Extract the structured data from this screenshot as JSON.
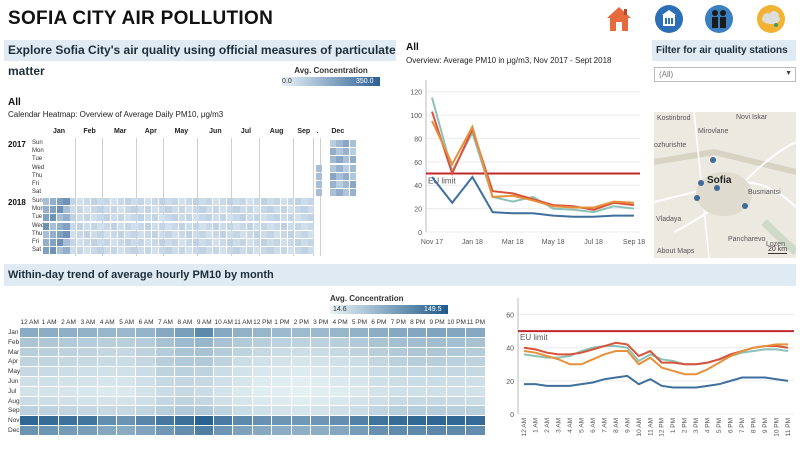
{
  "header": {
    "title": "SOFIA CITY AIR POLLUTION",
    "icons": [
      "home-icon",
      "building-icon",
      "people-icon",
      "weather-icon"
    ]
  },
  "explore_banner": "Explore Sofia City's air quality using official measures of particulate matter",
  "calendar_legend": {
    "title": "Avg. Concentration",
    "min": "0.0",
    "max": "350.0"
  },
  "calendar": {
    "all_label": "All",
    "subtitle": "Calendar Heatmap: Overview of Average Daily PM10, μg/m3",
    "months": [
      "Jan",
      "Feb",
      "Mar",
      "Apr",
      "May",
      "Jun",
      "Jul",
      "Aug",
      "Sep",
      ".",
      "Dec"
    ],
    "years": [
      "2017",
      "2018"
    ],
    "weekdays": [
      "Sun",
      "Mon",
      "Tue",
      "Wed",
      "Thu",
      "Fri",
      "Sat"
    ]
  },
  "line_top": {
    "all_label": "All",
    "subtitle": "Overview: Average PM10 in μg/m3, Nov 2017 - Sept 2018",
    "eu_limit_label": "EU limit"
  },
  "filter": {
    "title": "Filter for air quality stations",
    "selected": "(All)"
  },
  "map": {
    "labels": [
      "Kostinbrod",
      "Novi Iskar",
      "Mirovlane",
      "ozhurishte",
      "Sofia",
      "Busmantsi",
      "Vladaya",
      "Pancharevo",
      "Lozen"
    ],
    "attribution": "About Maps",
    "scale": "20 km"
  },
  "hourly_banner": "Within-day trend of average hourly PM10 by month",
  "hourly_legend": {
    "title": "Avg. Concentration",
    "min": "14.6",
    "max": "149.5"
  },
  "hourly_heatmap": {
    "hours": [
      "12 AM",
      "1 AM",
      "2 AM",
      "3 AM",
      "4 AM",
      "5 AM",
      "6 AM",
      "7 AM",
      "8 AM",
      "9 AM",
      "10 AM",
      "11 AM",
      "12 PM",
      "1 PM",
      "2 PM",
      "3 PM",
      "4 PM",
      "5 PM",
      "6 PM",
      "7 PM",
      "8 PM",
      "9 PM",
      "10 PM",
      "11 PM"
    ],
    "months": [
      "Jan",
      "Feb",
      "Mar",
      "Apr",
      "May",
      "Jun",
      "Jul",
      "Aug",
      "Sep",
      "Nov",
      "Dec"
    ]
  },
  "line_bottom": {
    "eu_limit_label": "EU limit"
  },
  "colors": {
    "banner_bg": "#dfeaf3",
    "eu_limit": "#c0282d",
    "series_blue": "#3f6f9c",
    "series_orange": "#e8903a",
    "series_red": "#d9533b",
    "series_green": "#8bc2b8",
    "heat_low": "#eef5f8",
    "heat_high": "#1f5a8a"
  },
  "chart_data": [
    {
      "type": "line",
      "x": [
        "Nov 17",
        "Dec 17",
        "Jan 18",
        "Feb 18",
        "Mar 18",
        "Apr 18",
        "May 18",
        "Jun 18",
        "Jul 18",
        "Aug 18",
        "Sep 18"
      ],
      "x_tick_labels": [
        "Nov 17",
        "Jan 18",
        "Mar 18",
        "May 18",
        "Jul 18",
        "Sep 18"
      ],
      "y_ticks": [
        0,
        20,
        40,
        60,
        80,
        100,
        120
      ],
      "ylim": [
        0,
        130
      ],
      "reference_line": {
        "label": "EU limit",
        "value": 50
      },
      "series": [
        {
          "color": "#8bc2b8",
          "values": [
            115,
            52,
            85,
            30,
            26,
            30,
            20,
            19,
            17,
            22,
            20
          ]
        },
        {
          "color": "#d9533b",
          "values": [
            103,
            50,
            88,
            35,
            33,
            28,
            23,
            22,
            19,
            25,
            23
          ]
        },
        {
          "color": "#e8903a",
          "values": [
            95,
            58,
            90,
            30,
            31,
            27,
            22,
            21,
            21,
            26,
            25
          ]
        },
        {
          "color": "#3f6f9c",
          "values": [
            47,
            25,
            47,
            17,
            16,
            16,
            14,
            13,
            13,
            14,
            14
          ]
        }
      ]
    },
    {
      "type": "heatmap",
      "rows": [
        "Jan",
        "Feb",
        "Mar",
        "Apr",
        "May",
        "Jun",
        "Jul",
        "Aug",
        "Sep",
        "Nov",
        "Dec"
      ],
      "columns": [
        "12 AM",
        "1 AM",
        "2 AM",
        "3 AM",
        "4 AM",
        "5 AM",
        "6 AM",
        "7 AM",
        "8 AM",
        "9 AM",
        "10 AM",
        "11 AM",
        "12 PM",
        "1 PM",
        "2 PM",
        "3 PM",
        "4 PM",
        "5 PM",
        "6 PM",
        "7 PM",
        "8 PM",
        "9 PM",
        "10 PM",
        "11 PM"
      ],
      "range": [
        14.6,
        149.5
      ],
      "values": [
        [
          68,
          66,
          64,
          62,
          58,
          56,
          60,
          70,
          80,
          100,
          70,
          62,
          58,
          55,
          54,
          55,
          58,
          62,
          66,
          70,
          72,
          74,
          72,
          70
        ],
        [
          45,
          44,
          42,
          40,
          38,
          37,
          40,
          48,
          54,
          58,
          48,
          42,
          38,
          36,
          35,
          36,
          38,
          42,
          46,
          50,
          52,
          52,
          50,
          48
        ],
        [
          38,
          37,
          35,
          34,
          32,
          31,
          34,
          40,
          46,
          48,
          40,
          34,
          30,
          28,
          27,
          28,
          30,
          34,
          38,
          42,
          44,
          44,
          42,
          40
        ],
        [
          34,
          33,
          31,
          30,
          29,
          28,
          32,
          38,
          42,
          42,
          34,
          28,
          25,
          23,
          22,
          23,
          25,
          28,
          32,
          36,
          38,
          38,
          36,
          35
        ],
        [
          30,
          29,
          27,
          26,
          25,
          25,
          28,
          34,
          36,
          34,
          28,
          24,
          21,
          20,
          19,
          20,
          22,
          24,
          28,
          30,
          32,
          32,
          31,
          30
        ],
        [
          26,
          25,
          24,
          23,
          22,
          22,
          25,
          30,
          32,
          30,
          25,
          22,
          19,
          18,
          17,
          18,
          20,
          22,
          25,
          27,
          28,
          28,
          27,
          26
        ],
        [
          24,
          23,
          22,
          21,
          20,
          20,
          23,
          28,
          30,
          28,
          23,
          20,
          18,
          17,
          16,
          17,
          18,
          20,
          23,
          25,
          26,
          26,
          25,
          24
        ],
        [
          28,
          27,
          25,
          24,
          23,
          23,
          26,
          32,
          34,
          32,
          26,
          22,
          20,
          19,
          18,
          19,
          21,
          23,
          26,
          29,
          30,
          30,
          29,
          28
        ],
        [
          36,
          35,
          33,
          32,
          30,
          30,
          33,
          38,
          42,
          42,
          34,
          28,
          25,
          23,
          22,
          23,
          25,
          28,
          33,
          38,
          40,
          40,
          38,
          37
        ],
        [
          135,
          130,
          124,
          120,
          96,
          90,
          104,
          118,
          126,
          140,
          115,
          100,
          92,
          88,
          86,
          88,
          95,
          108,
          122,
          130,
          134,
          136,
          134,
          132
        ],
        [
          90,
          88,
          84,
          80,
          72,
          68,
          74,
          86,
          96,
          110,
          88,
          76,
          70,
          66,
          64,
          66,
          72,
          82,
          92,
          98,
          100,
          102,
          100,
          96
        ]
      ]
    },
    {
      "type": "line",
      "x": [
        "12 AM",
        "1 AM",
        "2 AM",
        "3 AM",
        "4 AM",
        "5 AM",
        "6 AM",
        "7 AM",
        "8 AM",
        "9 AM",
        "10 AM",
        "11 AM",
        "12 PM",
        "1 PM",
        "2 PM",
        "3 PM",
        "4 PM",
        "5 PM",
        "6 PM",
        "7 PM",
        "8 PM",
        "9 PM",
        "10 PM",
        "11 PM"
      ],
      "y_ticks": [
        0,
        20,
        40,
        60
      ],
      "ylim": [
        0,
        70
      ],
      "reference_line": {
        "label": "EU limit",
        "value": 50
      },
      "series": [
        {
          "color": "#8bc2b8",
          "values": [
            36,
            35,
            34,
            34,
            35,
            38,
            40,
            41,
            41,
            40,
            32,
            36,
            33,
            32,
            30,
            30,
            31,
            33,
            35,
            37,
            38,
            39,
            39,
            38
          ]
        },
        {
          "color": "#d9533b",
          "values": [
            40,
            39,
            37,
            36,
            36,
            37,
            39,
            41,
            43,
            42,
            35,
            38,
            31,
            31,
            30,
            30,
            31,
            33,
            36,
            38,
            40,
            41,
            41,
            40
          ]
        },
        {
          "color": "#e8903a",
          "values": [
            38,
            37,
            35,
            33,
            30,
            30,
            33,
            36,
            38,
            38,
            30,
            34,
            28,
            26,
            24,
            24,
            27,
            31,
            35,
            38,
            40,
            41,
            42,
            42
          ]
        },
        {
          "color": "#3f6f9c",
          "values": [
            18,
            18,
            17,
            17,
            17,
            18,
            19,
            21,
            22,
            23,
            18,
            21,
            17,
            16,
            16,
            16,
            17,
            18,
            20,
            22,
            22,
            22,
            21,
            20
          ]
        }
      ]
    }
  ]
}
